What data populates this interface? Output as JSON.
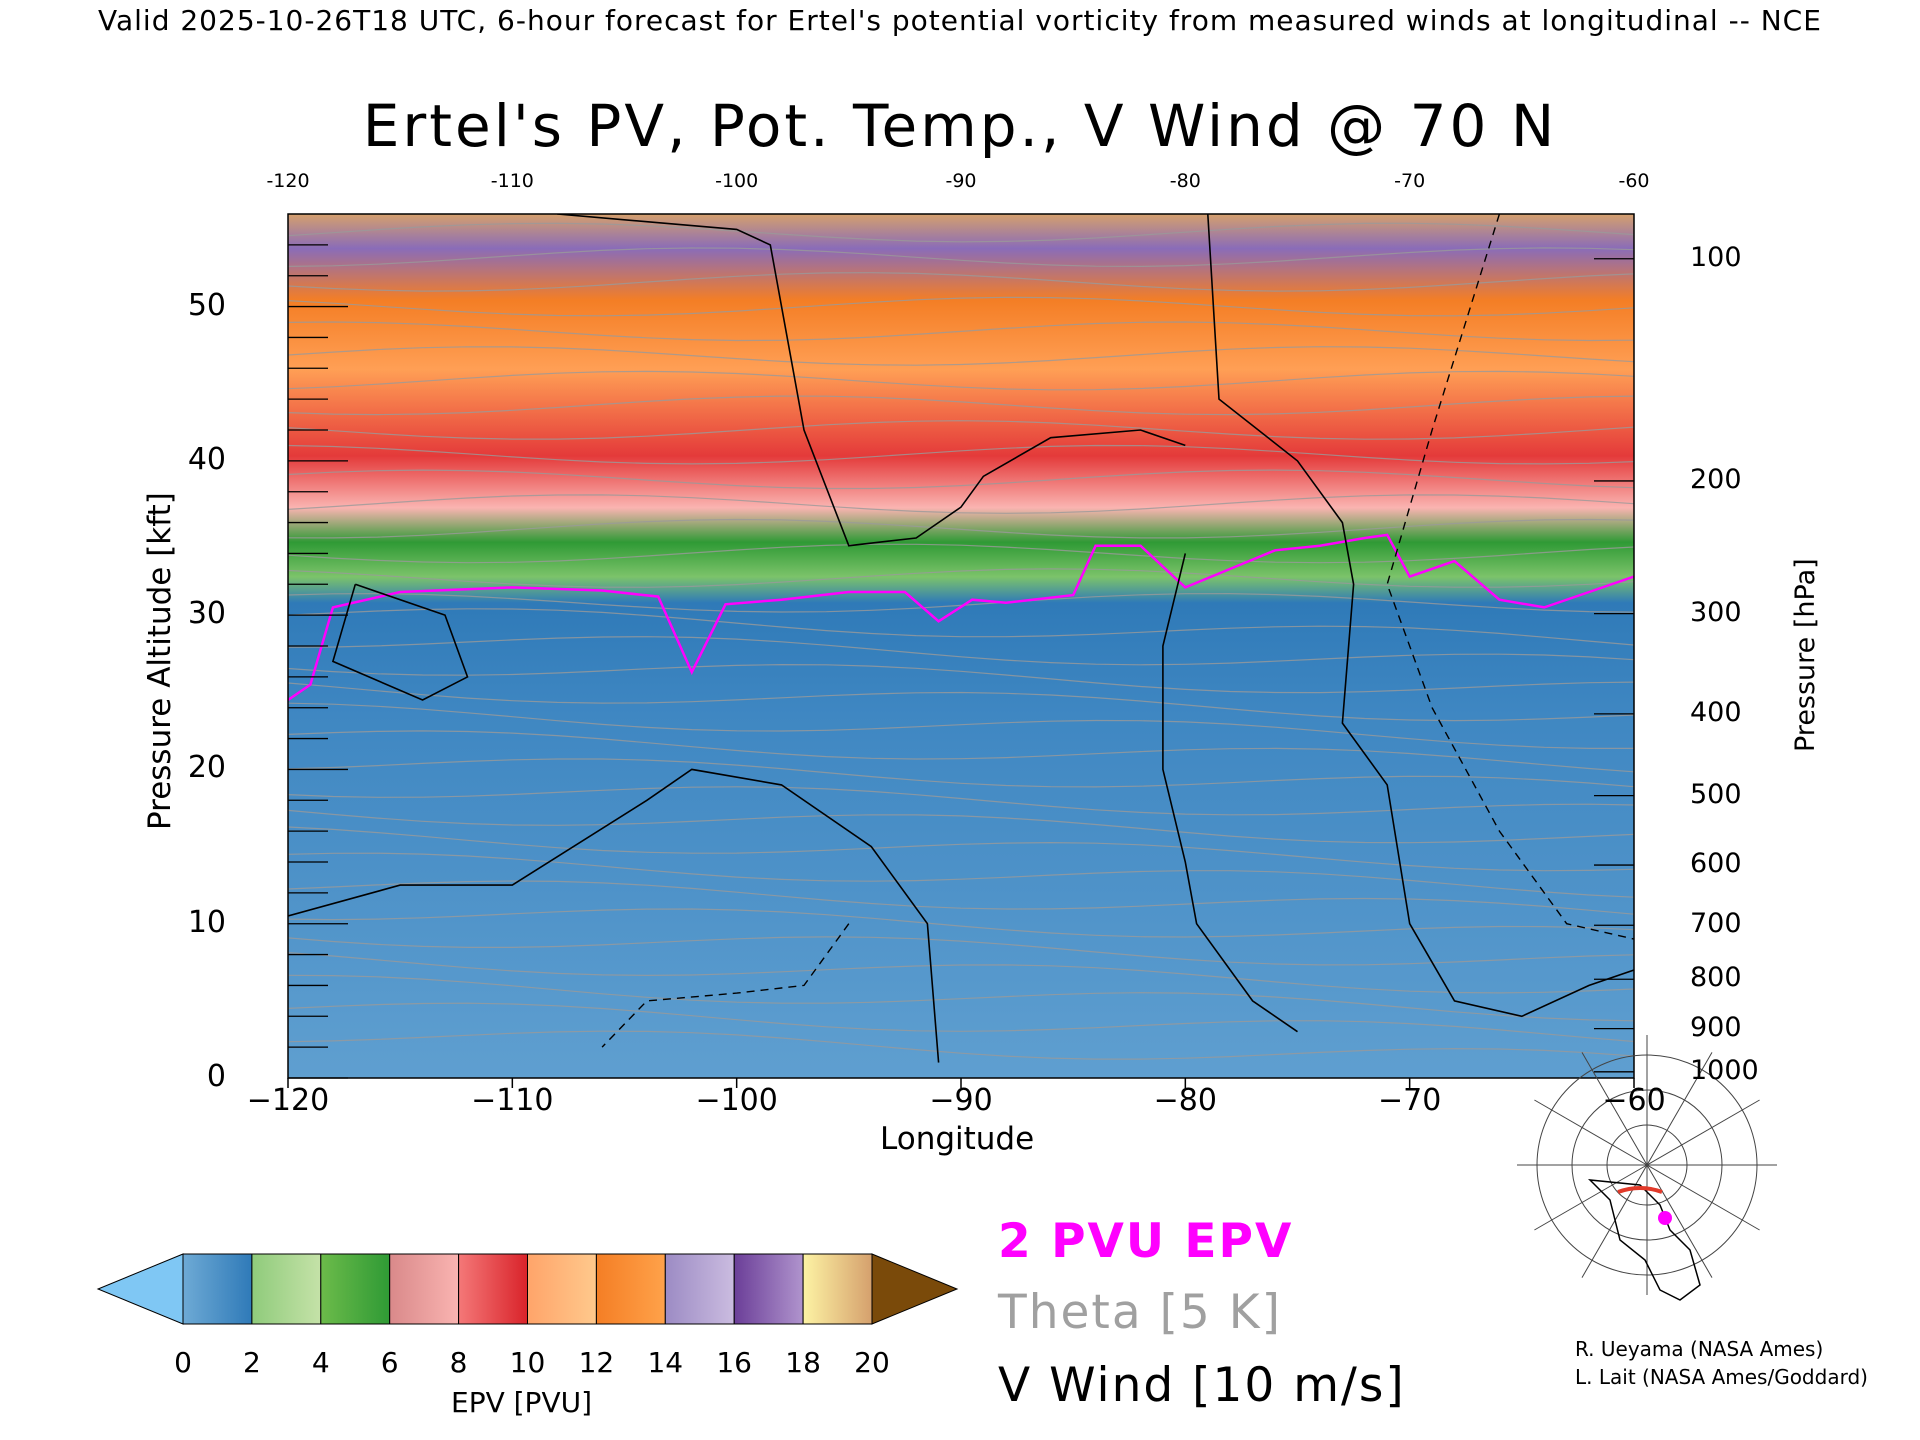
{
  "header": {
    "text": "Valid 2025-10-26T18 UTC, 6-hour forecast for Ertel's potential vorticity from measured winds at longitudinal -- NCE"
  },
  "chart_data": {
    "type": "heatmap",
    "title": "Ertel's PV, Pot. Temp., V Wind @ 70 N",
    "xlabel": "Longitude",
    "ylabel": "Pressure Altitude [kft]",
    "y2label": "Pressure [hPa]",
    "xlim": [
      -120,
      -60
    ],
    "ylim": [
      0,
      56
    ],
    "x_ticks": [
      "−120",
      "−110",
      "−100",
      "−90",
      "−80",
      "−70",
      "−60"
    ],
    "x_tick_values": [
      -120,
      -110,
      -100,
      -90,
      -80,
      -70,
      -60
    ],
    "top_ticks": [
      "-120",
      "-110",
      "-100",
      "-90",
      "-80",
      "-70",
      "-60"
    ],
    "y_ticks": [
      "0",
      "10",
      "20",
      "30",
      "40",
      "50"
    ],
    "y_tick_values": [
      0,
      10,
      20,
      30,
      40,
      50
    ],
    "pressure_ticks": [
      {
        "label": "100",
        "kft": 53.1
      },
      {
        "label": "200",
        "kft": 38.7
      },
      {
        "label": "300",
        "kft": 30.1
      },
      {
        "label": "400",
        "kft": 23.6
      },
      {
        "label": "500",
        "kft": 18.3
      },
      {
        "label": "600",
        "kft": 13.8
      },
      {
        "label": "700",
        "kft": 9.9
      },
      {
        "label": "800",
        "kft": 6.4
      },
      {
        "label": "900",
        "kft": 3.2
      },
      {
        "label": "1000",
        "kft": 0.4
      }
    ],
    "tropopause_2pvu_kft": {
      "lon": [
        -120,
        -119,
        -118,
        -115,
        -110,
        -106,
        -103.5,
        -102,
        -100.5,
        -98,
        -95,
        -92.5,
        -91,
        -89.5,
        -88,
        -85,
        -84,
        -82,
        -80,
        -78,
        -76,
        -74,
        -72,
        -71,
        -70,
        -68,
        -66,
        -64,
        -62,
        -60
      ],
      "kft": [
        24.5,
        25.5,
        30.5,
        31.5,
        31.8,
        31.6,
        31.2,
        26.3,
        30.7,
        31.0,
        31.5,
        31.5,
        29.6,
        31.0,
        30.8,
        31.3,
        34.5,
        34.5,
        31.8,
        33.0,
        34.2,
        34.5,
        35.0,
        35.2,
        32.5,
        33.5,
        31.0,
        30.5,
        31.5,
        32.5
      ]
    },
    "colorbar": {
      "label": "EPV [PVU]",
      "ticks": [
        "0",
        "2",
        "4",
        "6",
        "8",
        "10",
        "12",
        "14",
        "16",
        "18",
        "20"
      ],
      "min": 0,
      "max": 20,
      "bins": [
        {
          "from": 0,
          "to": 2,
          "colors": [
            "#6eaad5",
            "#2f7ab8"
          ]
        },
        {
          "from": 2,
          "to": 4,
          "colors": [
            "#8fcb7b",
            "#c5e2a8"
          ]
        },
        {
          "from": 4,
          "to": 6,
          "colors": [
            "#6cbb4a",
            "#2f9a35"
          ]
        },
        {
          "from": 6,
          "to": 8,
          "colors": [
            "#d9898a",
            "#fab4b1"
          ]
        },
        {
          "from": 8,
          "to": 10,
          "colors": [
            "#f47878",
            "#d9232a"
          ]
        },
        {
          "from": 10,
          "to": 12,
          "colors": [
            "#ffa46a",
            "#ffc98c"
          ]
        },
        {
          "from": 12,
          "to": 14,
          "colors": [
            "#f47e25",
            "#ffa24a"
          ]
        },
        {
          "from": 14,
          "to": 16,
          "colors": [
            "#9c8bc4",
            "#cbbce0"
          ]
        },
        {
          "from": 16,
          "to": 18,
          "colors": [
            "#6b3e98",
            "#b094cd"
          ]
        },
        {
          "from": 18,
          "to": 20,
          "colors": [
            "#fdf3a4",
            "#d5a06d"
          ]
        }
      ],
      "under_color": "#7fc7f4",
      "over_color": "#7a4a0a"
    }
  },
  "legend": {
    "epv": "2 PVU EPV",
    "theta": "Theta [5 K]",
    "wind": "V Wind [10 m/s]",
    "epv_color": "#ff00ff",
    "theta_color": "#a0a0a0",
    "wind_color": "#000000"
  },
  "credits": {
    "line1": "R. Ueyama (NASA Ames)",
    "line2": "L. Lait (NASA Ames/Goddard)"
  }
}
